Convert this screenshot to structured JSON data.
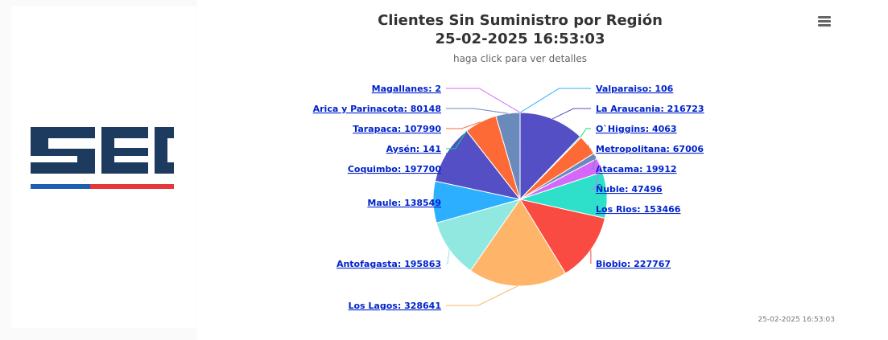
{
  "logo": {
    "text": "SEC",
    "colors": {
      "main": "#1d3a5f",
      "blue": "#1d5eb5",
      "red": "#e4383b"
    }
  },
  "menu": {
    "icon": "hamburger-icon"
  },
  "chart_data": {
    "type": "pie",
    "title": "Clientes Sin Suministro por Región",
    "subtitle": "25-02-2025 16:53:03",
    "caption": "haga click para ver detalles",
    "credit": "25-02-2025 16:53:03",
    "slices": [
      {
        "name": "Valparaiso",
        "value": 106,
        "color": "#2caffe",
        "label": "Valparaiso: 106"
      },
      {
        "name": "La Araucania",
        "value": 216723,
        "color": "#544fc5",
        "label": "La Araucania: 216723"
      },
      {
        "name": "O`Higgins",
        "value": 4063,
        "color": "#00e272",
        "label": "O`Higgins: 4063"
      },
      {
        "name": "Metropolitana",
        "value": 67006,
        "color": "#fe6a35",
        "label": "Metropolitana: 67006"
      },
      {
        "name": "Atacama",
        "value": 19912,
        "color": "#6b8abc",
        "label": "Atacama: 19912"
      },
      {
        "name": "Ñuble",
        "value": 47496,
        "color": "#d568fb",
        "label": "Ñuble: 47496"
      },
      {
        "name": "Los Rios",
        "value": 153466,
        "color": "#2ee0ca",
        "label": "Los Rios: 153466"
      },
      {
        "name": "Biobio",
        "value": 227767,
        "color": "#fa4b42",
        "label": "Biobio: 227767"
      },
      {
        "name": "Los Lagos",
        "value": 328641,
        "color": "#feb56a",
        "label": "Los Lagos: 328641"
      },
      {
        "name": "Antofagasta",
        "value": 195863,
        "color": "#91e8e1",
        "label": "Antofagasta: 195863"
      },
      {
        "name": "Maule",
        "value": 138549,
        "color": "#2caffe",
        "label": "Maule: 138549"
      },
      {
        "name": "Coquimbo",
        "value": 197700,
        "color": "#544fc5",
        "label": "Coquimbo: 197700"
      },
      {
        "name": "Aysén",
        "value": 141,
        "color": "#00e272",
        "label": "Aysén: 141"
      },
      {
        "name": "Tarapaca",
        "value": 107990,
        "color": "#fe6a35",
        "label": "Tarapaca: 107990"
      },
      {
        "name": "Arica y Parinacota",
        "value": 80148,
        "color": "#6b8abc",
        "label": "Arica y Parinacota: 80148"
      },
      {
        "name": "Magallanes",
        "value": 2,
        "color": "#d568fb",
        "label": "Magallanes: 2"
      }
    ]
  }
}
